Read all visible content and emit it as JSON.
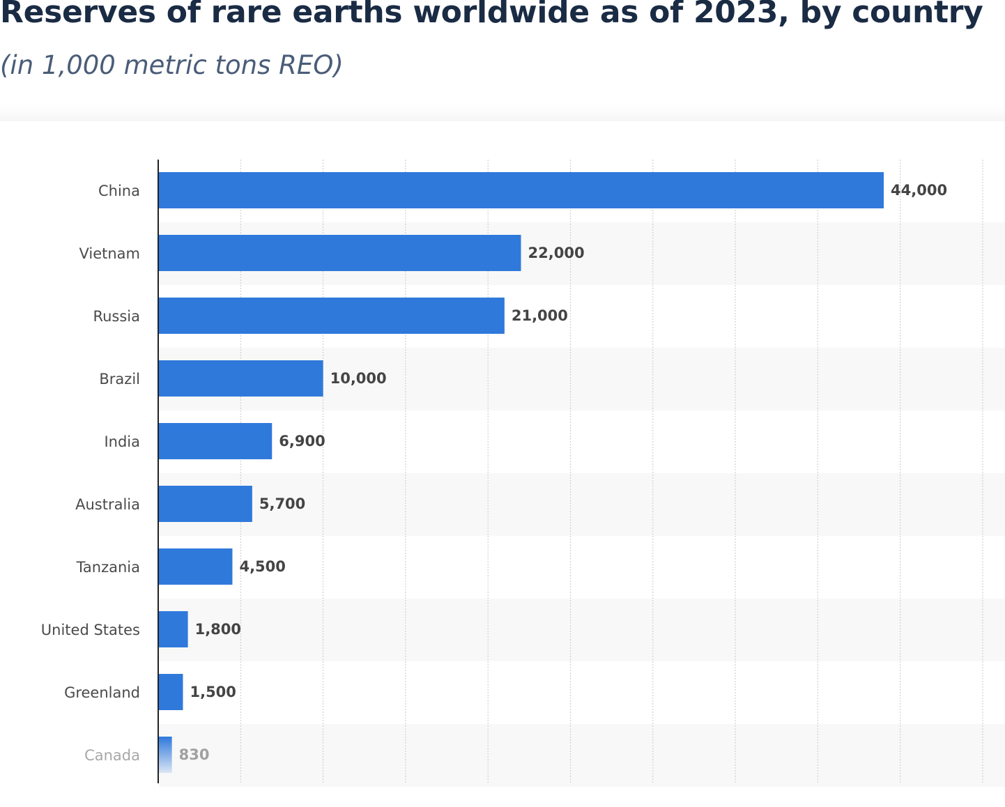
{
  "header": {
    "title": "Reserves of rare earths worldwide as of 2023, by country",
    "subtitle": "(in 1,000 metric tons REO)"
  },
  "colors": {
    "bar": "#2f79db",
    "band": "#f8f8f8",
    "grid": "#c9c9c9",
    "axis": "#222222",
    "category_text": "#4a4a4a",
    "value_text": "#444444"
  },
  "chart_data": {
    "type": "bar",
    "orientation": "horizontal",
    "categories": [
      "China",
      "Vietnam",
      "Russia",
      "Brazil",
      "India",
      "Australia",
      "Tanzania",
      "United States",
      "Greenland",
      "Canada"
    ],
    "value_labels": [
      "44,000",
      "22,000",
      "21,000",
      "10,000",
      "6,900",
      "5,700",
      "4,500",
      "1,800",
      "1,500",
      "830"
    ],
    "series": [
      {
        "values": [
          44000,
          22000,
          21000,
          10000,
          6900,
          5700,
          4500,
          1800,
          1500,
          830
        ]
      }
    ],
    "xlim": [
      0,
      50000
    ],
    "grid": true,
    "legend": "none"
  }
}
